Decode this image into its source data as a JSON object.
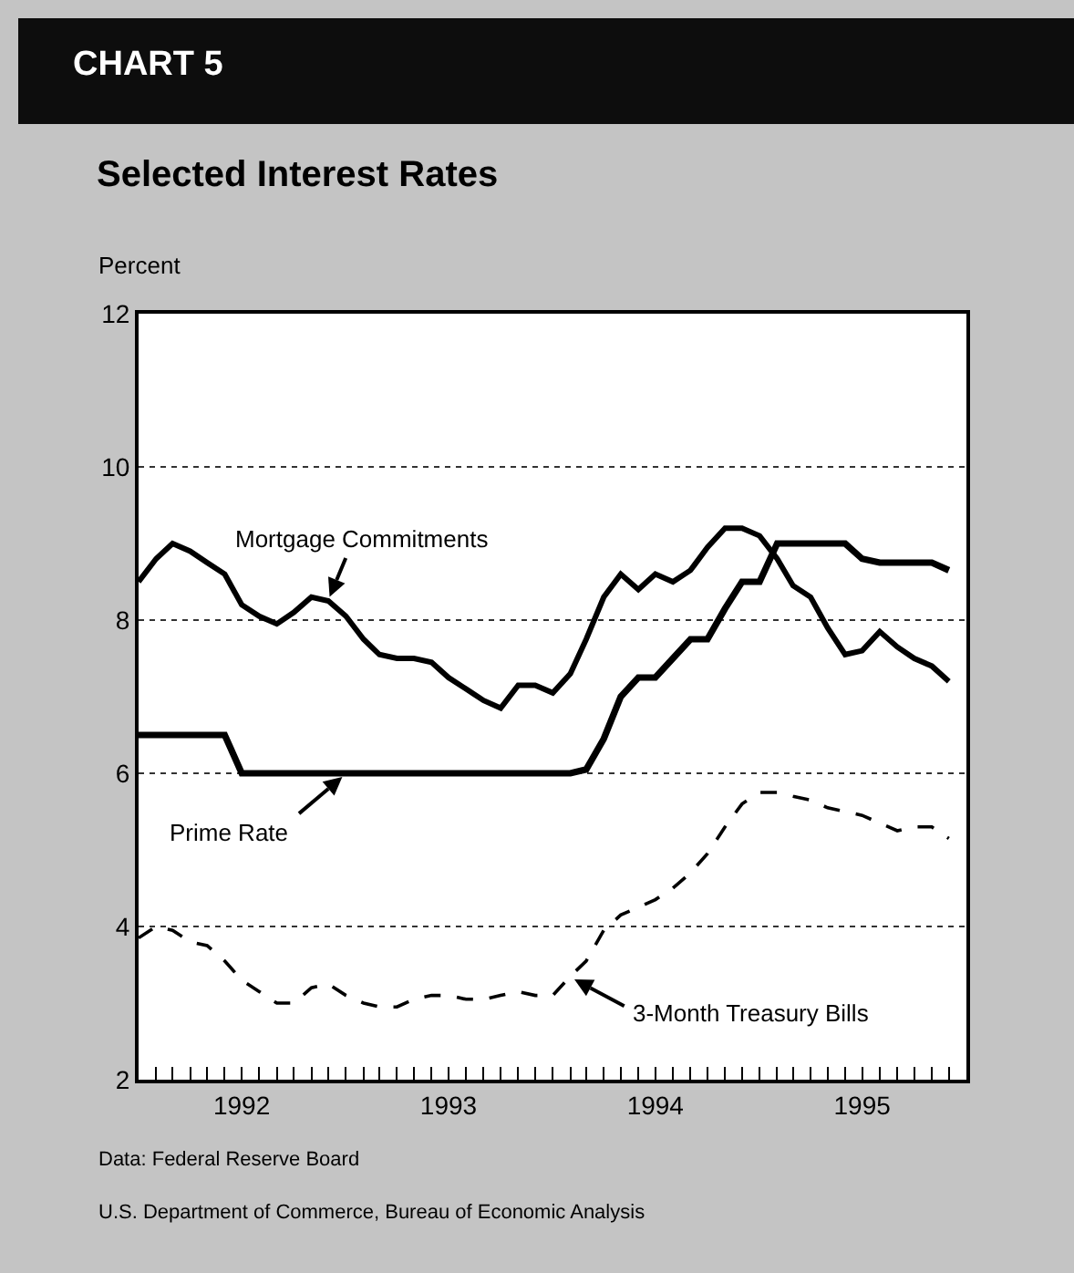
{
  "chart_data": {
    "type": "line",
    "title": "Selected Interest Rates",
    "ylabel": "Percent",
    "annotations": [
      "CHART 5",
      "Data: Federal Reserve Board",
      "U.S. Department of Commerce, Bureau of Economic Analysis"
    ],
    "x": [
      "1992-01",
      "1992-02",
      "1992-03",
      "1992-04",
      "1992-05",
      "1992-06",
      "1992-07",
      "1992-08",
      "1992-09",
      "1992-10",
      "1992-11",
      "1992-12",
      "1993-01",
      "1993-02",
      "1993-03",
      "1993-04",
      "1993-05",
      "1993-06",
      "1993-07",
      "1993-08",
      "1993-09",
      "1993-10",
      "1993-11",
      "1993-12",
      "1994-01",
      "1994-02",
      "1994-03",
      "1994-04",
      "1994-05",
      "1994-06",
      "1994-07",
      "1994-08",
      "1994-09",
      "1994-10",
      "1994-11",
      "1994-12",
      "1995-01",
      "1995-02",
      "1995-03",
      "1995-04",
      "1995-05",
      "1995-06",
      "1995-07",
      "1995-08",
      "1995-09",
      "1995-10",
      "1995-11",
      "1995-12"
    ],
    "series": [
      {
        "name": "Mortgage Commitments",
        "color": "#000000",
        "line_style": "solid",
        "values": [
          8.5,
          8.8,
          9.0,
          8.9,
          8.75,
          8.6,
          8.2,
          8.05,
          7.95,
          8.1,
          8.3,
          8.25,
          8.05,
          7.75,
          7.55,
          7.5,
          7.5,
          7.45,
          7.25,
          7.1,
          6.95,
          6.85,
          7.15,
          7.15,
          7.05,
          7.3,
          7.75,
          8.3,
          8.6,
          8.4,
          8.6,
          8.5,
          8.65,
          8.95,
          9.2,
          9.2,
          9.1,
          8.8,
          8.45,
          8.3,
          7.9,
          7.55,
          7.6,
          7.85,
          7.65,
          7.5,
          7.4,
          7.2
        ]
      },
      {
        "name": "Prime Rate",
        "color": "#000000",
        "line_style": "solid",
        "values": [
          6.5,
          6.5,
          6.5,
          6.5,
          6.5,
          6.5,
          6.0,
          6.0,
          6.0,
          6.0,
          6.0,
          6.0,
          6.0,
          6.0,
          6.0,
          6.0,
          6.0,
          6.0,
          6.0,
          6.0,
          6.0,
          6.0,
          6.0,
          6.0,
          6.0,
          6.0,
          6.05,
          6.45,
          7.0,
          7.25,
          7.25,
          7.5,
          7.75,
          7.75,
          8.15,
          8.5,
          8.5,
          9.0,
          9.0,
          9.0,
          9.0,
          9.0,
          8.8,
          8.75,
          8.75,
          8.75,
          8.75,
          8.65
        ]
      },
      {
        "name": "3-Month Treasury Bills",
        "color": "#000000",
        "line_style": "dashed",
        "values": [
          3.85,
          4.0,
          3.95,
          3.8,
          3.75,
          3.55,
          3.3,
          3.15,
          3.0,
          3.0,
          3.2,
          3.25,
          3.1,
          3.0,
          2.95,
          2.95,
          3.05,
          3.1,
          3.1,
          3.05,
          3.05,
          3.1,
          3.15,
          3.1,
          3.1,
          3.35,
          3.55,
          3.95,
          4.15,
          4.25,
          4.35,
          4.5,
          4.7,
          4.95,
          5.3,
          5.6,
          5.75,
          5.75,
          5.7,
          5.65,
          5.55,
          5.5,
          5.45,
          5.35,
          5.25,
          5.3,
          5.3,
          5.15
        ]
      }
    ],
    "xlim": [
      "1992-01-01",
      "1996-01-01"
    ],
    "xticks": [
      {
        "value": "1992-02-01",
        "label": null
      },
      {
        "value": "1992-03-01",
        "label": null
      },
      {
        "value": "1992-04-01",
        "label": null
      },
      {
        "value": "1992-05-01",
        "label": null
      },
      {
        "value": "1992-06-01",
        "label": null
      },
      {
        "value": "1992-07-01",
        "label": "1992"
      },
      {
        "value": "1992-08-01",
        "label": null
      },
      {
        "value": "1992-09-01",
        "label": null
      },
      {
        "value": "1992-10-01",
        "label": null
      },
      {
        "value": "1992-11-01",
        "label": null
      },
      {
        "value": "1992-12-01",
        "label": null
      },
      {
        "value": "1993-01-01",
        "label": null
      },
      {
        "value": "1993-02-01",
        "label": null
      },
      {
        "value": "1993-03-01",
        "label": null
      },
      {
        "value": "1993-04-01",
        "label": null
      },
      {
        "value": "1993-05-01",
        "label": null
      },
      {
        "value": "1993-06-01",
        "label": null
      },
      {
        "value": "1993-07-01",
        "label": "1993"
      },
      {
        "value": "1993-08-01",
        "label": null
      },
      {
        "value": "1993-09-01",
        "label": null
      },
      {
        "value": "1993-10-01",
        "label": null
      },
      {
        "value": "1993-11-01",
        "label": null
      },
      {
        "value": "1993-12-01",
        "label": null
      },
      {
        "value": "1994-01-01",
        "label": null
      },
      {
        "value": "1994-02-01",
        "label": null
      },
      {
        "value": "1994-03-01",
        "label": null
      },
      {
        "value": "1994-04-01",
        "label": null
      },
      {
        "value": "1994-05-01",
        "label": null
      },
      {
        "value": "1994-06-01",
        "label": null
      },
      {
        "value": "1994-07-01",
        "label": "1994"
      },
      {
        "value": "1994-08-01",
        "label": null
      },
      {
        "value": "1994-09-01",
        "label": null
      },
      {
        "value": "1994-10-01",
        "label": null
      },
      {
        "value": "1994-11-01",
        "label": null
      },
      {
        "value": "1994-12-01",
        "label": null
      },
      {
        "value": "1995-01-01",
        "label": null
      },
      {
        "value": "1995-02-01",
        "label": null
      },
      {
        "value": "1995-03-01",
        "label": null
      },
      {
        "value": "1995-04-01",
        "label": null
      },
      {
        "value": "1995-05-01",
        "label": null
      },
      {
        "value": "1995-06-01",
        "label": null
      },
      {
        "value": "1995-07-01",
        "label": "1995"
      },
      {
        "value": "1995-08-01",
        "label": null
      },
      {
        "value": "1995-09-01",
        "label": null
      },
      {
        "value": "1995-10-01",
        "label": null
      },
      {
        "value": "1995-11-01",
        "label": null
      },
      {
        "value": "1995-12-01",
        "label": null
      }
    ],
    "ylim": [
      2,
      12
    ],
    "yticks": [
      2,
      4,
      6,
      8,
      10,
      12
    ],
    "grid": "y",
    "legend": false,
    "marker": "none"
  }
}
